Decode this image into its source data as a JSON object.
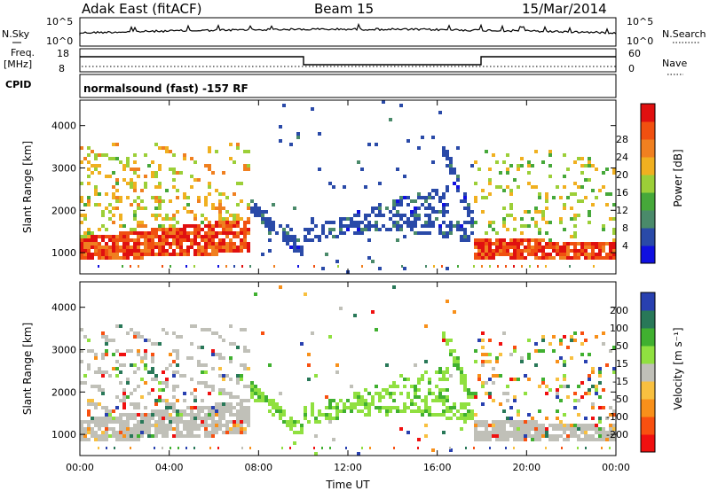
{
  "header": {
    "station": "Adak East (fitACF)",
    "beam": "Beam 15",
    "date": "15/Mar/2014"
  },
  "top_panels": {
    "nsky_label": "N.Sky",
    "nsearch_label": "N.Search",
    "noise_ticks": [
      "10^5",
      "10^0"
    ],
    "freq_label": "Freq.",
    "freq_unit": "[MHz]",
    "freq_ticks": [
      "18",
      "8"
    ],
    "nave_ticks": [
      "60",
      "0"
    ],
    "nave_label": "Nave",
    "cpid_label": "CPID",
    "cpid_text": "normalsound (fast) -157 RF"
  },
  "colors": {
    "power": [
      "#1010e0",
      "#2a4aa8",
      "#4a8a6a",
      "#46a83a",
      "#9ccf38",
      "#f0b020",
      "#f08020",
      "#f05010",
      "#e01010"
    ],
    "velocity": [
      "#f01010",
      "#f85010",
      "#f8901a",
      "#f8c040",
      "#c0c0b8",
      "#90e040",
      "#40b030",
      "#287858",
      "#2840b0"
    ]
  },
  "chart_data": [
    {
      "type": "heatmap",
      "title": "",
      "ylabel": "Slant Range [km]",
      "xlabel": "",
      "x_ticks": [
        "00:00",
        "04:00",
        "08:00",
        "12:00",
        "16:00",
        "20:00",
        "00:00"
      ],
      "y_ticks": [
        1000,
        2000,
        3000,
        4000
      ],
      "ylim": [
        500,
        4600
      ],
      "xlim_hours": [
        0,
        24
      ],
      "colorbar": {
        "label": "Power [dB]",
        "ticks": [
          4,
          8,
          12,
          16,
          20,
          24,
          28
        ],
        "range": [
          0,
          32
        ]
      }
    },
    {
      "type": "heatmap",
      "title": "",
      "ylabel": "Slant Range [km]",
      "xlabel": "Time UT",
      "x_ticks": [
        "00:00",
        "04:00",
        "08:00",
        "12:00",
        "16:00",
        "20:00",
        "00:00"
      ],
      "y_ticks": [
        1000,
        2000,
        3000,
        4000
      ],
      "ylim": [
        500,
        4600
      ],
      "xlim_hours": [
        0,
        24
      ],
      "colorbar": {
        "label": "Velocity [m s⁻¹]",
        "ticks": [
          200,
          100,
          50,
          15,
          -15,
          -50,
          -100,
          -200
        ]
      }
    }
  ]
}
